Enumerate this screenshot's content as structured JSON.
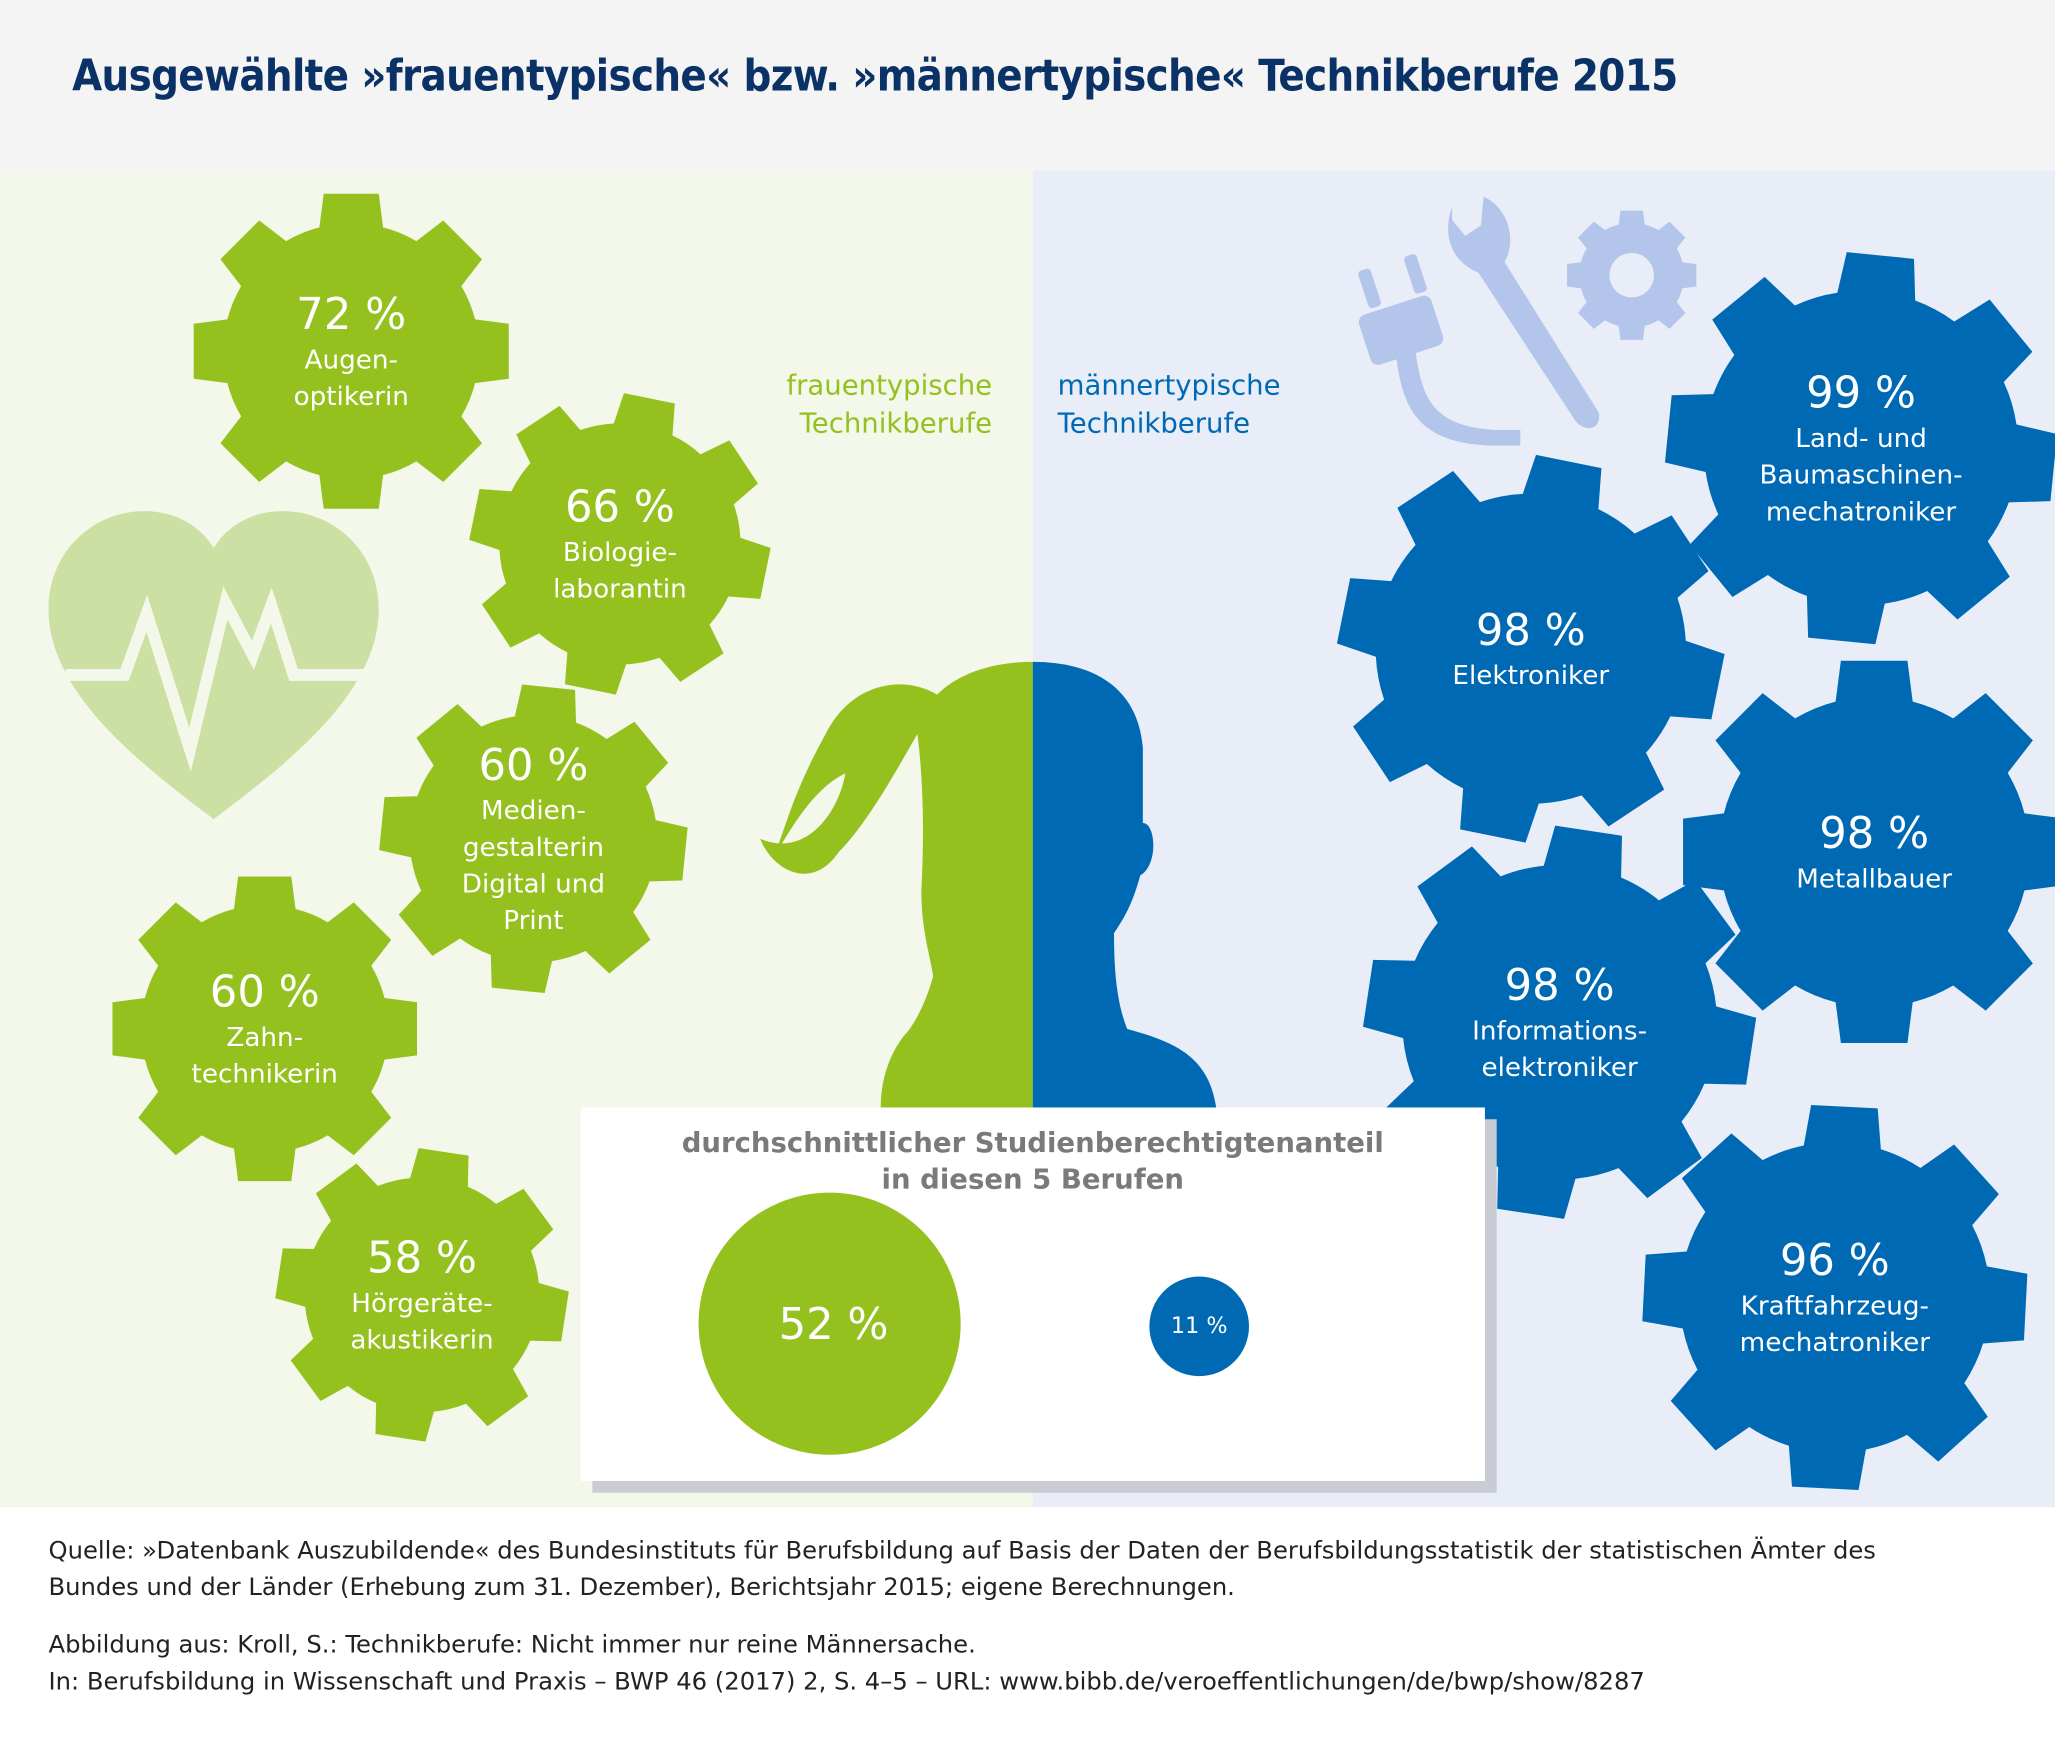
{
  "title": "Ausgewählte »frauentypische« bzw. »männertypische« Technikberufe 2015",
  "colors": {
    "green": "#95c11f",
    "blue": "#0069b4",
    "title": "#0b3266",
    "heart": "#cde0a4",
    "icon_light_blue": "#b3c5ea"
  },
  "female": {
    "label_lines": [
      "frauentypische",
      "Technikberufe"
    ],
    "professions": [
      {
        "percent": "72 %",
        "lines": [
          "Augen-",
          "optikerin"
        ],
        "value": 72
      },
      {
        "percent": "66 %",
        "lines": [
          "Biologie-",
          "laborantin"
        ],
        "value": 66
      },
      {
        "percent": "60 %",
        "lines": [
          "Medien-",
          "gestalterin",
          "Digital und",
          "Print"
        ],
        "value": 60
      },
      {
        "percent": "60 %",
        "lines": [
          "Zahn-",
          "technikerin"
        ],
        "value": 60
      },
      {
        "percent": "58 %",
        "lines": [
          "Hörgeräte-",
          "akustikerin"
        ],
        "value": 58
      }
    ]
  },
  "male": {
    "label_lines": [
      "männertypische",
      "Technikberufe"
    ],
    "professions": [
      {
        "percent": "99 %",
        "lines": [
          "Land- und",
          "Baumaschinen-",
          "mechatroniker"
        ],
        "value": 99
      },
      {
        "percent": "98 %",
        "lines": [
          "Elektroniker"
        ],
        "value": 98
      },
      {
        "percent": "98 %",
        "lines": [
          "Metallbauer"
        ],
        "value": 98
      },
      {
        "percent": "98 %",
        "lines": [
          "Informations-",
          "elektroniker"
        ],
        "value": 98
      },
      {
        "percent": "96 %",
        "lines": [
          "Kraftfahrzeug-",
          "mechatroniker"
        ],
        "value": 96
      }
    ]
  },
  "summary": {
    "title_lines": [
      "durchschnittlicher Studienberechtigtenanteil",
      "in diesen 5 Berufen"
    ],
    "female_value": "52 %",
    "male_value": "11 %",
    "female_number": 52,
    "male_number": 11
  },
  "footer": {
    "source_lines": [
      "Quelle: »Datenbank Auszubildende« des Bundesinstituts für Berufsbildung auf Basis der Daten der Berufsbildungsstatistik der statistischen Ämter des",
      "Bundes und der Länder (Erhebung zum 31. Dezember), Berichtsjahr 2015; eigene Berechnungen."
    ],
    "citation_lines": [
      "Abbildung aus: Kroll, S.: Technikberufe: Nicht immer nur reine Männersache.",
      "In: Berufsbildung in Wissenschaft und Praxis – BWP 46 (2017) 2, S. 4–5 – URL: www.bibb.de/veroeffentlichungen/de/bwp/show/8287"
    ]
  },
  "icons": [
    "heart-pulse-icon",
    "plug-icon",
    "wrench-icon",
    "gear-icon"
  ]
}
